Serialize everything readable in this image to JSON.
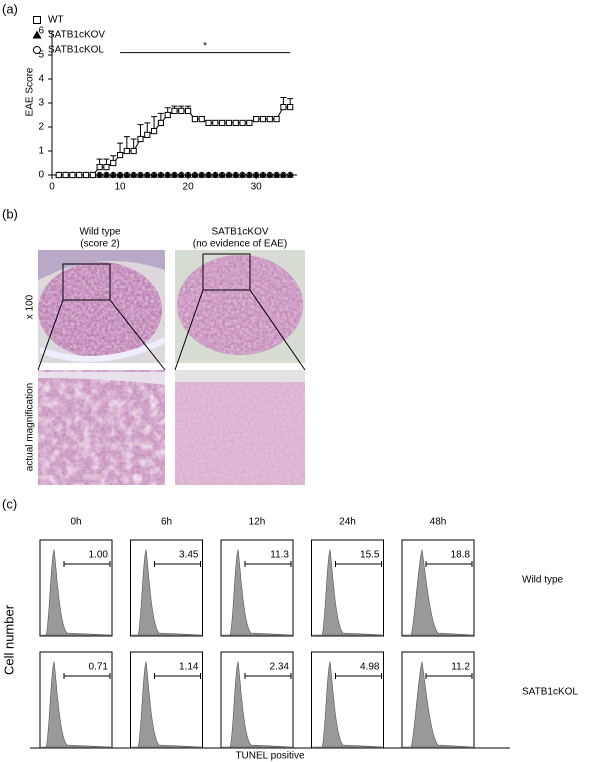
{
  "panel_labels": [
    "(a)",
    "(b)",
    "(c)"
  ],
  "chart_data": {
    "type": "line",
    "ylabel": "EAE Score",
    "x": [
      1,
      2,
      3,
      4,
      5,
      6,
      7,
      8,
      9,
      10,
      11,
      12,
      13,
      14,
      15,
      16,
      17,
      18,
      19,
      20,
      21,
      22,
      23,
      24,
      25,
      26,
      27,
      28,
      29,
      30,
      31,
      32,
      33,
      34,
      35
    ],
    "series": [
      {
        "name": "WT",
        "marker": "square",
        "color": "#000000",
        "values": [
          0,
          0,
          0,
          0,
          0,
          0,
          0.33,
          0.33,
          0.5,
          0.83,
          1.0,
          1.0,
          1.5,
          1.67,
          1.83,
          2.17,
          2.5,
          2.67,
          2.67,
          2.67,
          2.33,
          2.33,
          2.17,
          2.17,
          2.17,
          2.17,
          2.17,
          2.17,
          2.17,
          2.33,
          2.33,
          2.33,
          2.33,
          2.83,
          2.83
        ],
        "errors": [
          0,
          0,
          0,
          0,
          0,
          0,
          0.33,
          0.33,
          0.3,
          0.5,
          0.6,
          0.5,
          0.6,
          0.5,
          0.6,
          0.4,
          0.3,
          0.2,
          0.2,
          0.2,
          0.1,
          0.1,
          0.1,
          0.1,
          0.1,
          0.1,
          0.1,
          0.1,
          0.1,
          0.1,
          0.1,
          0.1,
          0.1,
          0.4,
          0.35
        ]
      },
      {
        "name": "SATB1cKOV",
        "marker": "triangle",
        "color": "#000000",
        "values": [
          0,
          0,
          0,
          0,
          0,
          0,
          0,
          0,
          0,
          0,
          0,
          0,
          0,
          0,
          0,
          0,
          0,
          0,
          0,
          0,
          0,
          0,
          0,
          0,
          0,
          0,
          0,
          0,
          0,
          0,
          0,
          0,
          0,
          0,
          0
        ]
      },
      {
        "name": "SATB1cKOL",
        "marker": "circle",
        "color": "#000000",
        "values": [
          0,
          0,
          0,
          0,
          0,
          0,
          0,
          0,
          0,
          0,
          0,
          0,
          0,
          0,
          0,
          0,
          0,
          0,
          0,
          0,
          0,
          0,
          0,
          0,
          0,
          0,
          0,
          0,
          0,
          0,
          0,
          0,
          0,
          0,
          0
        ]
      }
    ],
    "xlim": [
      0,
      36
    ],
    "ylim": [
      0,
      6
    ],
    "xticks": [
      0,
      10,
      20,
      30
    ],
    "yticks": [
      0,
      1,
      2,
      3,
      4,
      5,
      6
    ],
    "significance": {
      "x": [
        10,
        35
      ],
      "y": 5.1,
      "label": "*"
    }
  },
  "histology": {
    "columns": [
      {
        "title": "Wild type",
        "subtitle": "(score 2)"
      },
      {
        "title": "SATB1cKOV",
        "subtitle": "(no evidence of EAE)"
      }
    ],
    "rows": [
      "x 100",
      "actual magnification"
    ]
  },
  "tunel": {
    "times": [
      "0h",
      "6h",
      "12h",
      "24h",
      "48h"
    ],
    "ylabel": "Cell number",
    "xlabel": "TUNEL positive",
    "rows": [
      {
        "label": "Wild type",
        "values": [
          1.0,
          3.45,
          11.3,
          15.5,
          18.8
        ],
        "value_labels": [
          "1.00",
          "3.45",
          "11.3",
          "15.5",
          "18.8"
        ]
      },
      {
        "label": "SATB1cKOL",
        "values": [
          0.71,
          1.14,
          2.34,
          4.98,
          11.2
        ]
      }
    ]
  }
}
